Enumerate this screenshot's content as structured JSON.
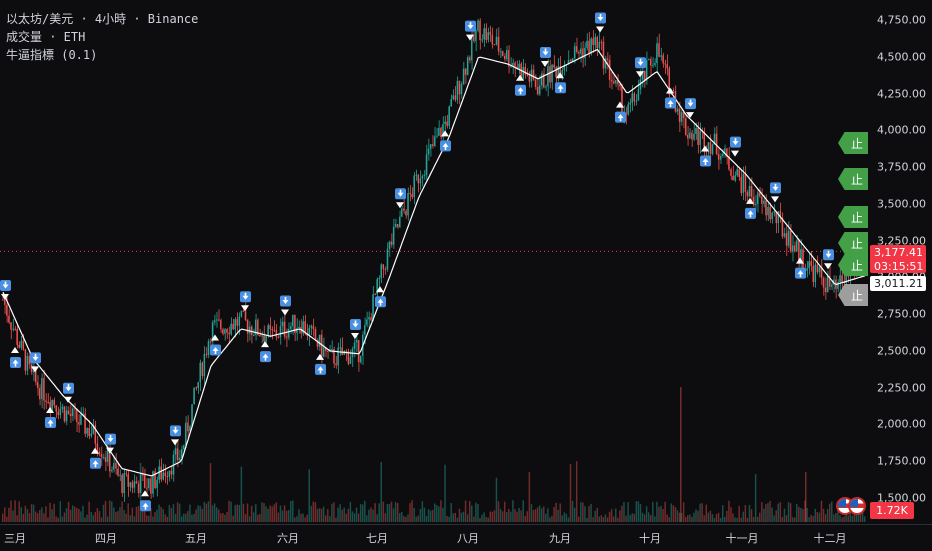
{
  "legend": {
    "symbol": "以太坊/美元 · 4小時 · Binance",
    "volume": "成交量 · ETH",
    "indicator": "牛逼指標 (0.1)"
  },
  "price_axis": {
    "ticks": [
      "4,750.00",
      "4,500.00",
      "4,250.00",
      "4,000.00",
      "3,750.00",
      "3,500.00",
      "3,250.00",
      "3,000.00",
      "2,750.00",
      "2,500.00",
      "2,250.00",
      "2,000.00",
      "1,750.00",
      "1,500.00"
    ],
    "current_price": "3,177.41",
    "countdown": "03:15:51",
    "reference_price": "3,011.21",
    "volume_value": "1.72K"
  },
  "time_axis": {
    "months": [
      "三月",
      "四月",
      "五月",
      "六月",
      "七月",
      "八月",
      "九月",
      "十月",
      "十一月",
      "十二月"
    ]
  },
  "stop_tags": [
    "止",
    "止",
    "止",
    "止",
    "止",
    "止"
  ],
  "colors": {
    "up": "#26a69a",
    "down": "#ef5350",
    "signal": "#4a90e2",
    "stop": "#43a047",
    "ma": "#ffffff"
  },
  "chart_data": {
    "type": "candlestick",
    "symbol": "ETH/USD",
    "interval": "4h",
    "x": [
      "三月",
      "三月",
      "四月",
      "四月",
      "四月",
      "五月",
      "五月",
      "五月",
      "六月",
      "六月",
      "六月",
      "七月",
      "七月",
      "七月",
      "八月",
      "八月",
      "八月",
      "八月",
      "九月",
      "九月",
      "九月",
      "十月",
      "十月",
      "十月",
      "十一月",
      "十一月",
      "十一月",
      "十一月",
      "十二月",
      "十二月"
    ],
    "close": [
      2850,
      2300,
      2100,
      1950,
      1600,
      1600,
      1800,
      2650,
      2700,
      2600,
      2700,
      2450,
      2500,
      3200,
      3700,
      4100,
      4700,
      4500,
      4300,
      4500,
      4600,
      4100,
      4550,
      4000,
      3900,
      3600,
      3400,
      3100,
      2900,
      3177
    ],
    "ma": [
      2900,
      2450,
      2200,
      2000,
      1700,
      1650,
      1750,
      2400,
      2650,
      2600,
      2650,
      2500,
      2480,
      3000,
      3550,
      3950,
      4500,
      4450,
      4350,
      4450,
      4550,
      4250,
      4400,
      4100,
      3900,
      3700,
      3450,
      3200,
      2950,
      3011
    ],
    "ylim": [
      1400,
      4900
    ],
    "yticks": [
      1500,
      1750,
      2000,
      2250,
      2500,
      2750,
      3000,
      3250,
      3500,
      3750,
      4000,
      4250,
      4500,
      4750
    ]
  }
}
